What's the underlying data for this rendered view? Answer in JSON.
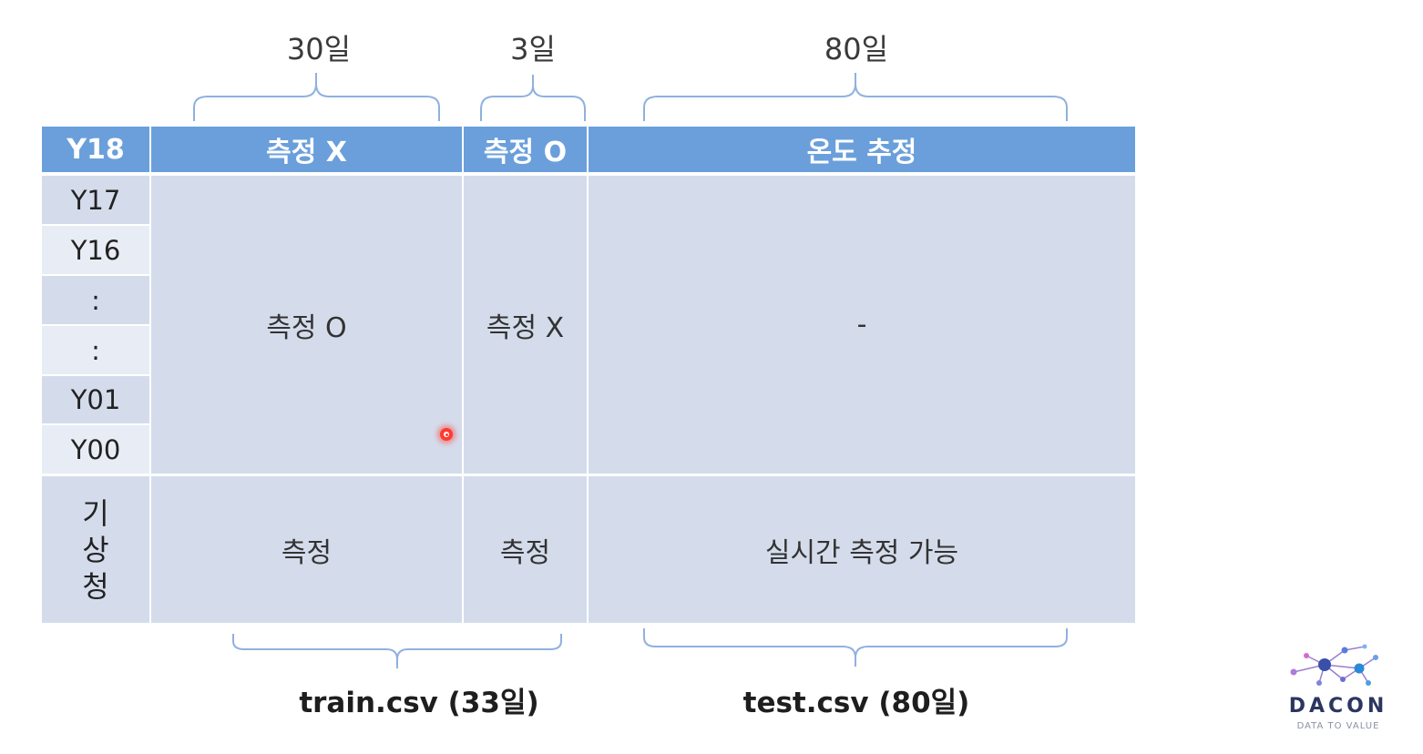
{
  "top_durations": [
    "30일",
    "3일",
    "80일"
  ],
  "header": {
    "row_label": "Y18",
    "col1": "측정 X",
    "col2": "측정 O",
    "col3": "온도 추정"
  },
  "rows": {
    "labels": [
      "Y17",
      "Y16",
      ":",
      ":",
      "Y01",
      "Y00"
    ],
    "col1": "측정 O",
    "col2": "측정 X",
    "col3": "-"
  },
  "kma": {
    "label_chars": [
      "기",
      "상",
      "청"
    ],
    "col1": "측정",
    "col2": "측정",
    "col3": "실시간 측정 가능"
  },
  "bottom_labels": {
    "train": "train.csv (33일)",
    "test": "test.csv (80일)"
  },
  "logo": {
    "name": "DACON",
    "tagline": "DATA TO VALUE"
  },
  "colors": {
    "header_blue": "#6a9fdb",
    "body_fill": "#d4dcec",
    "body_light": "#e8edf5",
    "brace": "#8fb1de",
    "pointer": "#ff3b2f"
  }
}
